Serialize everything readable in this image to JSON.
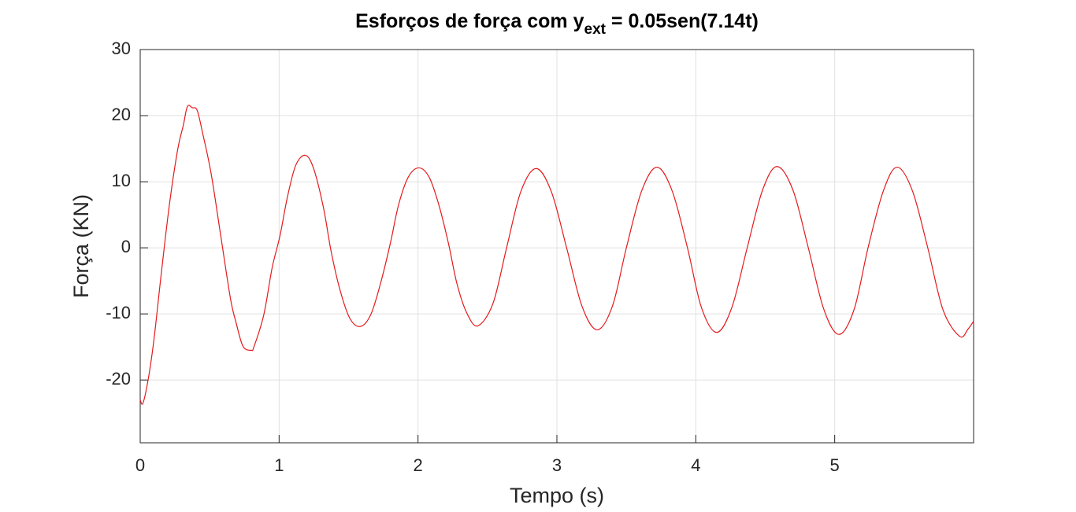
{
  "chart_data": {
    "type": "line",
    "title": "Esforços de força com y",
    "title_subscript": "ext",
    "title_suffix": " = 0.05sen(7.14t)",
    "xlabel": "Tempo (s)",
    "ylabel": "Força (KN)",
    "xlim": [
      0,
      6
    ],
    "ylim": [
      -29.5,
      30
    ],
    "xticks": [
      0,
      1,
      2,
      3,
      4,
      5
    ],
    "yticks": [
      -20,
      -10,
      0,
      10,
      20,
      30
    ],
    "grid": true,
    "series": [
      {
        "color": "#e41a1c",
        "x": [
          0,
          0.02,
          0.06,
          0.1,
          0.15,
          0.21,
          0.27,
          0.31,
          0.34,
          0.375,
          0.41,
          0.45,
          0.51,
          0.58,
          0.65,
          0.69,
          0.74,
          0.8,
          0.82,
          0.89,
          0.95,
          1.006,
          1.06,
          1.12,
          1.19,
          1.25,
          1.32,
          1.375,
          1.44,
          1.51,
          1.585,
          1.66,
          1.73,
          1.8,
          1.86,
          1.93,
          2.006,
          2.08,
          2.15,
          2.22,
          2.28,
          2.35,
          2.43,
          2.54,
          2.64,
          2.74,
          2.85,
          2.96,
          3.07,
          3.18,
          3.29,
          3.4,
          3.5,
          3.61,
          3.72,
          3.83,
          3.94,
          4.04,
          4.15,
          4.26,
          4.37,
          4.48,
          4.585,
          4.7,
          4.81,
          4.92,
          5.03,
          5.14,
          5.24,
          5.35,
          5.45,
          5.56,
          5.67,
          5.78,
          5.9,
          5.96,
          6.0
        ],
        "values": [
          -23.0,
          -23.5,
          -19.6,
          -13.7,
          -4.2,
          6.5,
          14.9,
          18.5,
          21.4,
          21.2,
          20.8,
          17.3,
          11.3,
          1.8,
          -7.7,
          -11.3,
          -14.9,
          -15.5,
          -14.9,
          -10.1,
          -3.0,
          1.8,
          7.7,
          12.5,
          14.0,
          11.9,
          6.0,
          -0.6,
          -6.5,
          -10.7,
          -11.9,
          -10.1,
          -5.4,
          0.6,
          6.5,
          10.7,
          12.1,
          10.7,
          6.5,
          0.6,
          -5.4,
          -9.8,
          -11.8,
          -8.4,
          0.2,
          8.5,
          12.0,
          8.5,
          0.0,
          -8.8,
          -12.4,
          -8.8,
          0.0,
          8.6,
          12.2,
          8.6,
          0.0,
          -9.0,
          -12.8,
          -9.0,
          0.0,
          8.7,
          12.3,
          8.7,
          0.0,
          -9.2,
          -13.1,
          -9.3,
          0.0,
          8.6,
          12.2,
          8.6,
          0.0,
          -9.4,
          -13.4,
          -12.3,
          -11.1
        ]
      }
    ]
  }
}
